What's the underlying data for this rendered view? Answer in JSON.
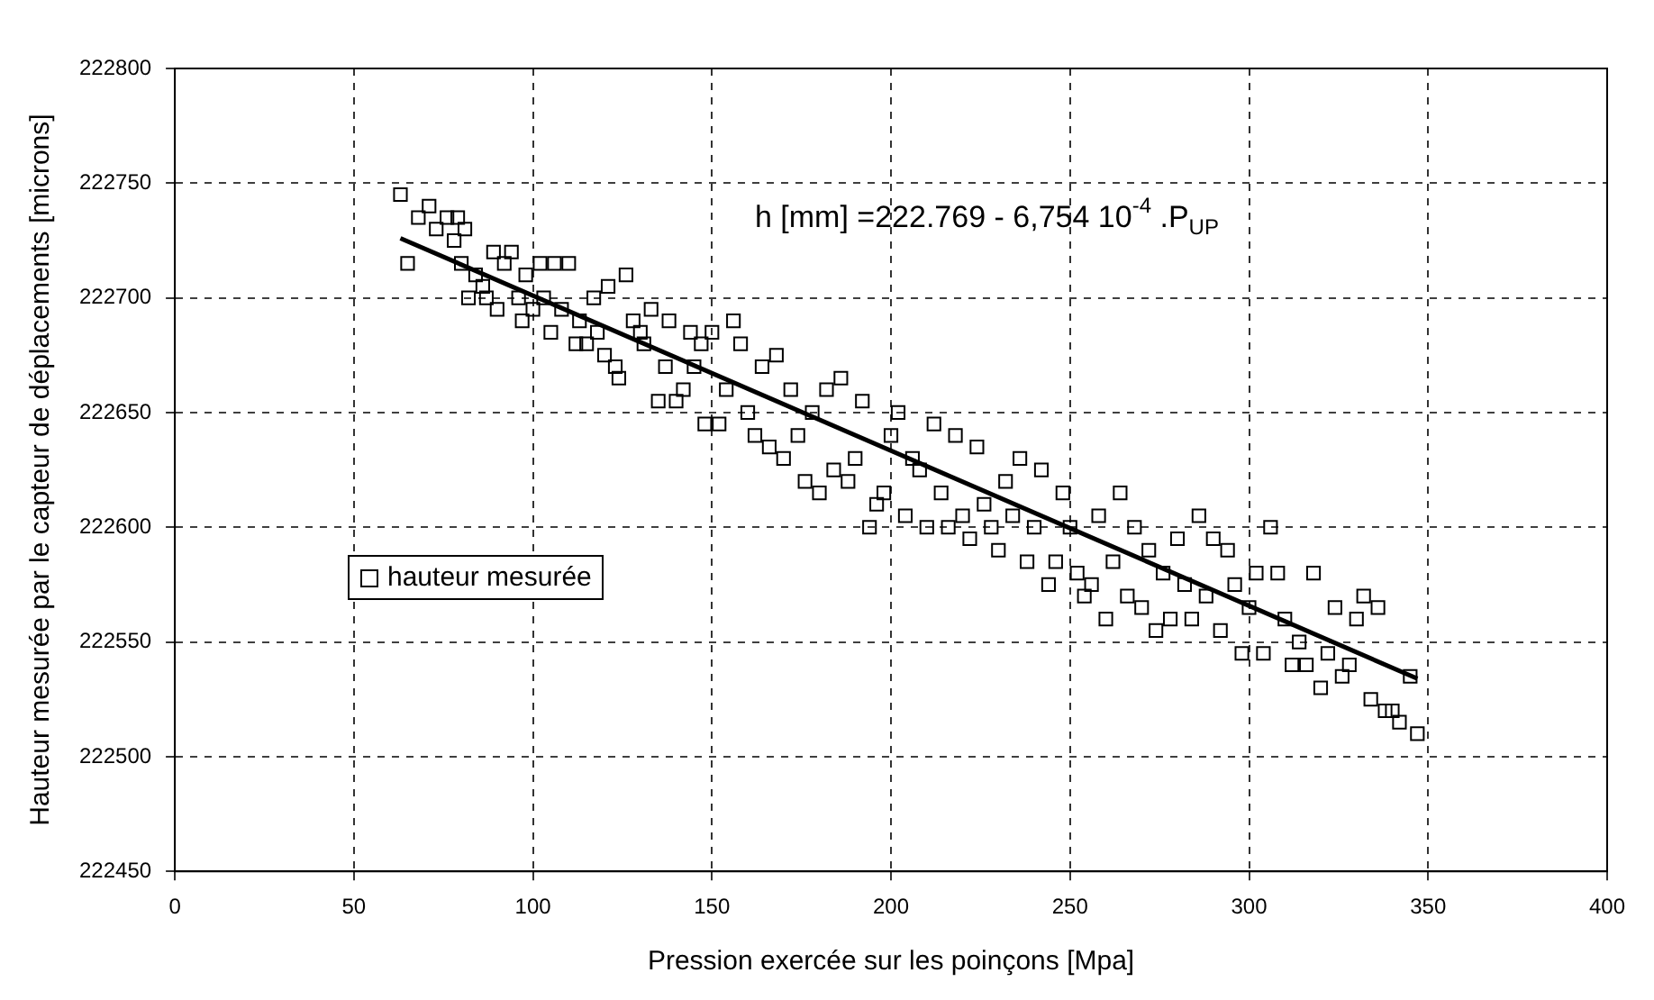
{
  "chart_data": {
    "type": "scatter",
    "xlabel": "Pression exercée sur les poinçons [Mpa]",
    "ylabel": "Hauteur mesurée par le capteur de déplacements [microns]",
    "annotations": [
      "h [mm] =222.769 - 6,754 10$^{-4}$ .P$_{UP}$"
    ],
    "xlim": [
      0,
      400
    ],
    "xticks": [
      0,
      50,
      100,
      150,
      200,
      250,
      300,
      350,
      400
    ],
    "ylim": [
      222450,
      222800
    ],
    "yticks": [
      222450,
      222500,
      222550,
      222600,
      222650,
      222700,
      222750,
      222800
    ],
    "grid": true,
    "legend": "left",
    "marker": "square",
    "series": [
      {
        "name": "hauteur mesurée",
        "color": "#000000",
        "x": [
          63,
          65,
          68,
          71,
          73,
          76,
          78,
          79,
          81,
          80,
          82,
          84,
          86,
          87,
          89,
          90,
          92,
          94,
          96,
          97,
          98,
          100,
          102,
          103,
          105,
          106,
          108,
          110,
          112,
          113,
          115,
          117,
          118,
          120,
          121,
          123,
          124,
          126,
          128,
          130,
          131,
          133,
          135,
          137,
          138,
          140,
          142,
          144,
          145,
          147,
          148,
          150,
          152,
          154,
          156,
          158,
          160,
          162,
          164,
          166,
          168,
          170,
          172,
          174,
          176,
          178,
          180,
          182,
          184,
          186,
          188,
          190,
          192,
          194,
          196,
          198,
          200,
          202,
          204,
          206,
          208,
          210,
          212,
          214,
          216,
          218,
          220,
          222,
          224,
          226,
          228,
          230,
          232,
          234,
          236,
          238,
          240,
          242,
          244,
          246,
          248,
          250,
          252,
          254,
          256,
          258,
          260,
          262,
          264,
          266,
          268,
          270,
          272,
          274,
          276,
          278,
          280,
          282,
          284,
          286,
          288,
          290,
          292,
          294,
          296,
          298,
          300,
          302,
          304,
          306,
          308,
          310,
          312,
          314,
          316,
          318,
          320,
          322,
          324,
          326,
          328,
          330,
          332,
          334,
          336,
          338,
          340,
          342,
          345,
          347
        ],
        "values": [
          222745,
          222715,
          222735,
          222740,
          222730,
          222735,
          222725,
          222735,
          222730,
          222715,
          222700,
          222710,
          222705,
          222700,
          222720,
          222695,
          222715,
          222720,
          222700,
          222690,
          222710,
          222695,
          222715,
          222700,
          222685,
          222715,
          222695,
          222715,
          222680,
          222690,
          222680,
          222700,
          222685,
          222675,
          222705,
          222670,
          222665,
          222710,
          222690,
          222685,
          222680,
          222695,
          222655,
          222670,
          222690,
          222655,
          222660,
          222685,
          222670,
          222680,
          222645,
          222685,
          222645,
          222660,
          222690,
          222680,
          222650,
          222640,
          222670,
          222635,
          222675,
          222630,
          222660,
          222640,
          222620,
          222650,
          222615,
          222660,
          222625,
          222665,
          222620,
          222630,
          222655,
          222600,
          222610,
          222615,
          222640,
          222650,
          222605,
          222630,
          222625,
          222600,
          222645,
          222615,
          222600,
          222640,
          222605,
          222595,
          222635,
          222610,
          222600,
          222590,
          222620,
          222605,
          222630,
          222585,
          222600,
          222625,
          222575,
          222585,
          222615,
          222600,
          222580,
          222570,
          222575,
          222605,
          222560,
          222585,
          222615,
          222570,
          222600,
          222565,
          222590,
          222555,
          222580,
          222560,
          222595,
          222575,
          222560,
          222605,
          222570,
          222595,
          222555,
          222590,
          222575,
          222545,
          222565,
          222580,
          222545,
          222600,
          222580,
          222560,
          222540,
          222550,
          222540,
          222580,
          222530,
          222545,
          222565,
          222535,
          222540,
          222560,
          222570,
          222525,
          222565,
          222520,
          222520,
          222515,
          222535,
          222510
        ]
      },
      {
        "type": "line",
        "color": "#000000",
        "marker": "none",
        "x": [
          63,
          347
        ],
        "values": [
          222726,
          222534
        ]
      }
    ]
  }
}
